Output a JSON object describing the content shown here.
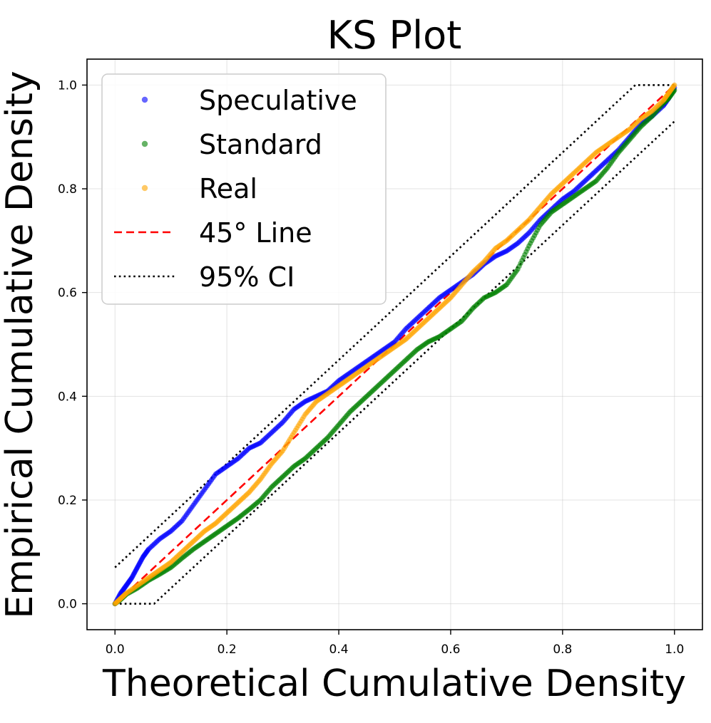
{
  "chart_data": {
    "type": "scatter",
    "title": "KS Plot",
    "xlabel": "Theoretical Cumulative Density",
    "ylabel": "Empirical Cumulative Density",
    "xlim": [
      -0.05,
      1.05
    ],
    "ylim": [
      -0.05,
      1.05
    ],
    "xticks": [
      "0.0",
      "0.2",
      "0.4",
      "0.6",
      "0.8",
      "1.0"
    ],
    "yticks": [
      "0.0",
      "0.2",
      "0.4",
      "0.6",
      "0.8",
      "1.0"
    ],
    "xtick_values": [
      0,
      0.2,
      0.4,
      0.6,
      0.8,
      1.0
    ],
    "ytick_values": [
      0,
      0.2,
      0.4,
      0.6,
      0.8,
      1.0
    ],
    "grid": true,
    "legend_position": "top-left",
    "series": [
      {
        "name": "Speculative",
        "kind": "points",
        "color": "#0000ff",
        "x": [
          0,
          0.01,
          0.02,
          0.03,
          0.04,
          0.05,
          0.06,
          0.08,
          0.1,
          0.12,
          0.14,
          0.16,
          0.18,
          0.2,
          0.22,
          0.24,
          0.26,
          0.28,
          0.3,
          0.32,
          0.34,
          0.36,
          0.38,
          0.4,
          0.42,
          0.44,
          0.46,
          0.48,
          0.5,
          0.52,
          0.54,
          0.56,
          0.58,
          0.6,
          0.62,
          0.64,
          0.66,
          0.68,
          0.7,
          0.72,
          0.74,
          0.76,
          0.78,
          0.8,
          0.82,
          0.84,
          0.86,
          0.88,
          0.9,
          0.92,
          0.94,
          0.96,
          0.98,
          0.99,
          1.0
        ],
        "y": [
          0,
          0.02,
          0.035,
          0.05,
          0.07,
          0.09,
          0.105,
          0.125,
          0.14,
          0.16,
          0.19,
          0.22,
          0.25,
          0.265,
          0.28,
          0.3,
          0.31,
          0.33,
          0.35,
          0.375,
          0.39,
          0.4,
          0.41,
          0.43,
          0.445,
          0.46,
          0.475,
          0.49,
          0.505,
          0.53,
          0.55,
          0.57,
          0.59,
          0.605,
          0.62,
          0.635,
          0.655,
          0.67,
          0.68,
          0.695,
          0.715,
          0.74,
          0.76,
          0.78,
          0.795,
          0.815,
          0.835,
          0.855,
          0.875,
          0.9,
          0.925,
          0.94,
          0.96,
          0.975,
          0.995
        ]
      },
      {
        "name": "Standard",
        "kind": "points",
        "color": "#008000",
        "x": [
          0,
          0.01,
          0.02,
          0.04,
          0.06,
          0.08,
          0.1,
          0.12,
          0.14,
          0.16,
          0.18,
          0.2,
          0.22,
          0.24,
          0.26,
          0.28,
          0.3,
          0.32,
          0.34,
          0.36,
          0.38,
          0.4,
          0.42,
          0.44,
          0.46,
          0.48,
          0.5,
          0.52,
          0.54,
          0.56,
          0.58,
          0.6,
          0.62,
          0.64,
          0.66,
          0.68,
          0.7,
          0.72,
          0.74,
          0.76,
          0.78,
          0.8,
          0.82,
          0.84,
          0.86,
          0.88,
          0.9,
          0.92,
          0.94,
          0.96,
          0.98,
          0.99,
          1.0
        ],
        "y": [
          0,
          0.008,
          0.018,
          0.03,
          0.045,
          0.057,
          0.07,
          0.088,
          0.105,
          0.12,
          0.135,
          0.15,
          0.165,
          0.182,
          0.2,
          0.225,
          0.245,
          0.265,
          0.28,
          0.3,
          0.32,
          0.345,
          0.37,
          0.39,
          0.41,
          0.43,
          0.45,
          0.47,
          0.49,
          0.505,
          0.515,
          0.53,
          0.545,
          0.57,
          0.59,
          0.6,
          0.615,
          0.645,
          0.69,
          0.73,
          0.755,
          0.77,
          0.785,
          0.8,
          0.815,
          0.84,
          0.87,
          0.895,
          0.92,
          0.94,
          0.965,
          0.975,
          0.99
        ]
      },
      {
        "name": "Real",
        "kind": "points",
        "color": "#ffa500",
        "x": [
          0,
          0.01,
          0.02,
          0.04,
          0.06,
          0.08,
          0.1,
          0.12,
          0.14,
          0.16,
          0.18,
          0.2,
          0.22,
          0.24,
          0.26,
          0.28,
          0.3,
          0.32,
          0.34,
          0.36,
          0.38,
          0.4,
          0.42,
          0.44,
          0.46,
          0.48,
          0.5,
          0.52,
          0.54,
          0.56,
          0.58,
          0.6,
          0.62,
          0.64,
          0.66,
          0.68,
          0.7,
          0.72,
          0.74,
          0.76,
          0.78,
          0.8,
          0.82,
          0.84,
          0.86,
          0.88,
          0.9,
          0.92,
          0.94,
          0.96,
          0.98,
          0.99,
          1.0
        ],
        "y": [
          0,
          0.01,
          0.02,
          0.035,
          0.05,
          0.065,
          0.08,
          0.1,
          0.12,
          0.14,
          0.155,
          0.175,
          0.195,
          0.215,
          0.24,
          0.27,
          0.295,
          0.33,
          0.365,
          0.39,
          0.405,
          0.42,
          0.435,
          0.45,
          0.465,
          0.48,
          0.495,
          0.51,
          0.53,
          0.55,
          0.57,
          0.59,
          0.615,
          0.64,
          0.66,
          0.685,
          0.7,
          0.72,
          0.74,
          0.765,
          0.79,
          0.81,
          0.83,
          0.85,
          0.87,
          0.885,
          0.9,
          0.915,
          0.935,
          0.95,
          0.97,
          0.985,
          1.0
        ]
      },
      {
        "name": "45° Line",
        "kind": "line",
        "style": "dashed",
        "color": "#ff0000",
        "x": [
          0,
          1
        ],
        "y": [
          0,
          1
        ]
      },
      {
        "name": "95% CI",
        "kind": "line",
        "style": "dotted",
        "color": "#000000",
        "upper": {
          "x": [
            0,
            0.93,
            1.0
          ],
          "y": [
            0.07,
            1.0,
            1.0
          ]
        },
        "lower": {
          "x": [
            0,
            0.07,
            1.0
          ],
          "y": [
            0,
            0,
            0.93
          ]
        }
      }
    ]
  }
}
